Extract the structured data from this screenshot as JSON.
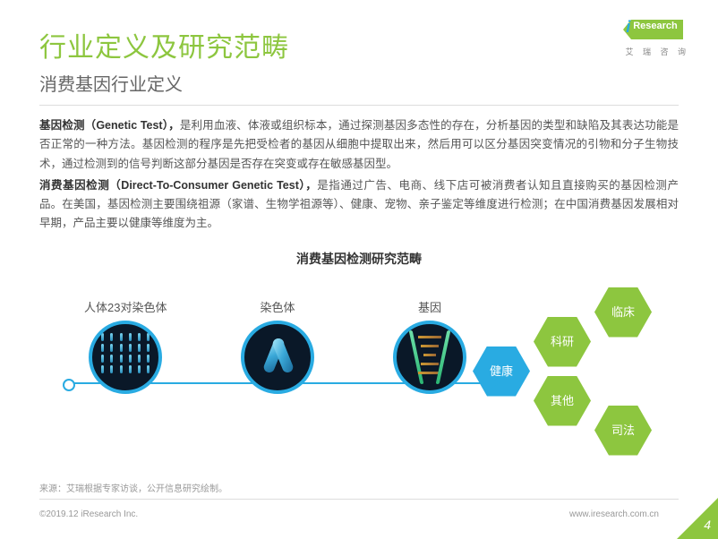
{
  "logo": {
    "text": "Research",
    "i": "i",
    "sub": "艾 瑞 咨 询"
  },
  "title": "行业定义及研究范畴",
  "subtitle": "消费基因行业定义",
  "para1_bold": "基因检测（Genetic Test），",
  "para1_rest": "是利用血液、体液或组织标本，通过探测基因多态性的存在，分析基因的类型和缺陷及其表达功能是否正常的一种方法。基因检测的程序是先把受检者的基因从细胞中提取出来，然后用可以区分基因突变情况的引物和分子生物技术，通过检测到的信号判断这部分基因是否存在突变或存在敏感基因型。",
  "para2_bold": "消费基因检测（Direct-To-Consumer Genetic Test），",
  "para2_rest": "是指通过广告、电商、线下店可被消费者认知且直接购买的基因检测产品。在美国，基因检测主要围绕祖源（家谱、生物学祖源等）、健康、宠物、亲子鉴定等维度进行检测；在中国消费基因发展相对早期，产品主要以健康等维度为主。",
  "diagram_title": "消费基因检测研究范畴",
  "circles": {
    "c1": "人体23对染色体",
    "c2": "染色体",
    "c3": "基因"
  },
  "hexagons": {
    "health": "健康",
    "research": "科研",
    "other": "其他",
    "clinical": "临床",
    "judicial": "司法"
  },
  "colors": {
    "accent_green": "#8dc63f",
    "accent_blue": "#29abe2"
  },
  "source": "来源：艾瑞根据专家访谈，公开信息研究绘制。",
  "copyright": "©2019.12 iResearch Inc.",
  "url": "www.iresearch.com.cn",
  "page_number": "4"
}
